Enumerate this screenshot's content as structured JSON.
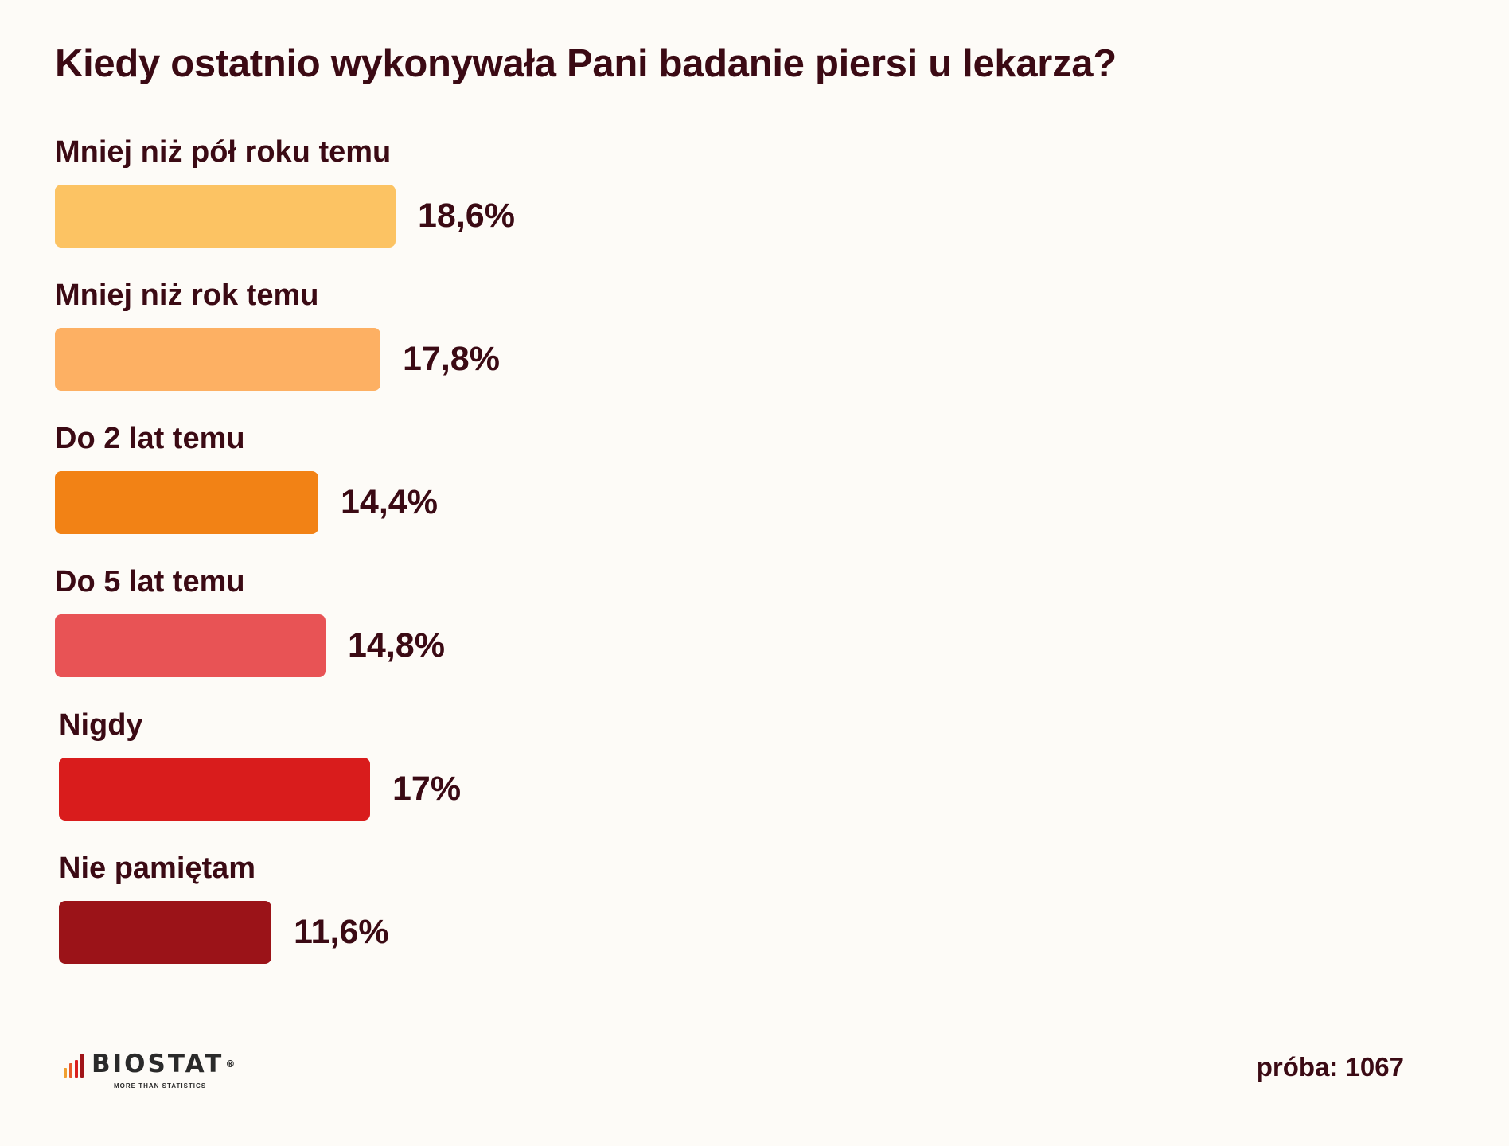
{
  "title": "Kiedy ostatnio wykonywała Pani badanie piersi u lekarza?",
  "chart_data": {
    "type": "bar",
    "orientation": "horizontal",
    "title": "Kiedy ostatnio wykonywała Pani badanie piersi u lekarza?",
    "categories": [
      "Mniej niż pół roku temu",
      "Mniej niż rok temu",
      "Do 2 lat temu",
      "Do 5 lat temu",
      "Nigdy",
      "Nie pamiętam"
    ],
    "values": [
      18.6,
      17.8,
      14.4,
      14.8,
      17,
      11.6
    ],
    "value_labels": [
      "18,6%",
      "17,8%",
      "14,4%",
      "14,8%",
      "17%",
      "11,6%"
    ],
    "colors": [
      "#fcc363",
      "#fdb063",
      "#f28215",
      "#e85355",
      "#d91c1c",
      "#9b1318"
    ],
    "xlabel": "",
    "ylabel": "",
    "grid": false,
    "legend": "none"
  },
  "footer": {
    "logo_name": "BIOSTAT",
    "logo_reg": "®",
    "logo_tagline": "MORE THAN STATISTICS",
    "logo_colors": [
      "#f0a030",
      "#e85a2a",
      "#d92020",
      "#a01418"
    ],
    "sample_label": "próba: 1067"
  }
}
